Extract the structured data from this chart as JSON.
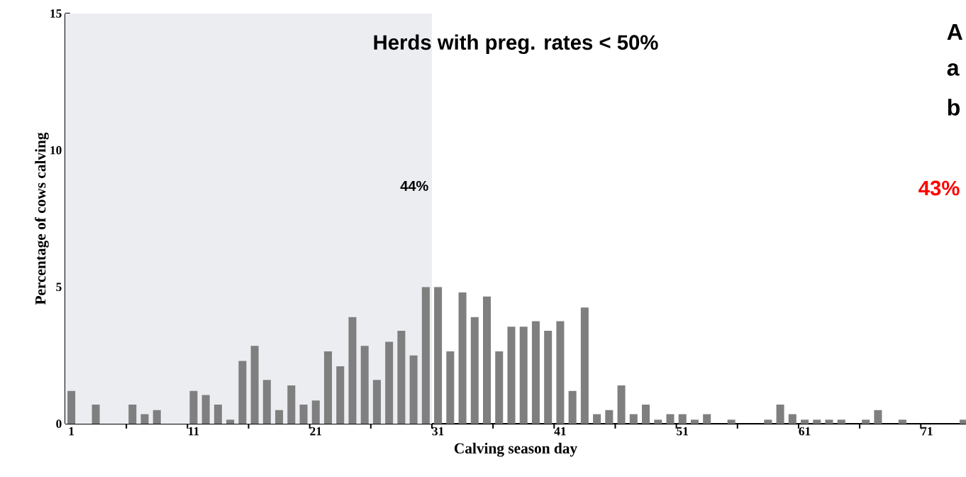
{
  "chart_data": {
    "type": "bar",
    "title": "Herds with preg. rates < 50%",
    "xlabel": "Calving season day",
    "ylabel": "Percentage of cows calving",
    "x": [
      1,
      2,
      3,
      4,
      5,
      6,
      7,
      8,
      9,
      10,
      11,
      12,
      13,
      14,
      15,
      16,
      17,
      18,
      19,
      20,
      21,
      22,
      23,
      24,
      25,
      26,
      27,
      28,
      29,
      30,
      31,
      32,
      33,
      34,
      35,
      36,
      37,
      38,
      39,
      40,
      41,
      42,
      43,
      44,
      45,
      46,
      47,
      48,
      49,
      50,
      51,
      52,
      53,
      54,
      55,
      56,
      57,
      58,
      59,
      60,
      61,
      62,
      63,
      64,
      65,
      66,
      67,
      68,
      69,
      70,
      71,
      72,
      73,
      74
    ],
    "values": [
      1.2,
      0,
      0.7,
      0,
      0,
      0.7,
      0.35,
      0.5,
      0,
      0,
      1.2,
      1.05,
      0.7,
      0.15,
      2.3,
      2.85,
      1.6,
      0.5,
      1.4,
      0.7,
      0.85,
      2.65,
      2.1,
      3.9,
      2.85,
      1.6,
      3.0,
      3.4,
      2.5,
      5.0,
      5.0,
      2.65,
      4.8,
      3.9,
      4.65,
      2.65,
      3.55,
      3.55,
      3.75,
      3.4,
      3.75,
      1.2,
      4.25,
      0.35,
      0.5,
      1.4,
      0.35,
      0.7,
      0.15,
      0.35,
      0.35,
      0.15,
      0.35,
      0,
      0.15,
      0,
      0,
      0.15,
      0.7,
      0.35,
      0.15,
      0.15,
      0.15,
      0.15,
      0,
      0.15,
      0.5,
      0,
      0.15,
      0,
      0,
      0,
      0,
      0.15
    ],
    "color": "#7f7f7f",
    "xlim": [
      0.5,
      74.2
    ],
    "ylim": [
      0,
      15
    ],
    "xticks": [
      1,
      {
        "value": 5.5,
        "label": null
      },
      {
        "value": 10.5,
        "label": null
      },
      11,
      {
        "value": 15.5,
        "label": null
      },
      {
        "value": 20.5,
        "label": null
      },
      21,
      {
        "value": 25.5,
        "label": null
      },
      {
        "value": 30.5,
        "label": null
      },
      31,
      {
        "value": 35.5,
        "label": null
      },
      {
        "value": 40.5,
        "label": null
      },
      41,
      {
        "value": 45.5,
        "label": null
      },
      {
        "value": 50.5,
        "label": null
      },
      51,
      {
        "value": 55.5,
        "label": null
      },
      {
        "value": 60.5,
        "label": null
      },
      61,
      {
        "value": 65.5,
        "label": null
      },
      {
        "value": 70.5,
        "label": null
      },
      71
    ],
    "yticks": [
      0,
      5,
      10,
      15
    ],
    "bands": [
      {
        "axis": "x",
        "from": 0.5,
        "to": 30.5,
        "label": "44%",
        "color": "#ebedf0"
      }
    ],
    "annotations": [
      "A",
      "a",
      "b",
      "43%"
    ]
  }
}
